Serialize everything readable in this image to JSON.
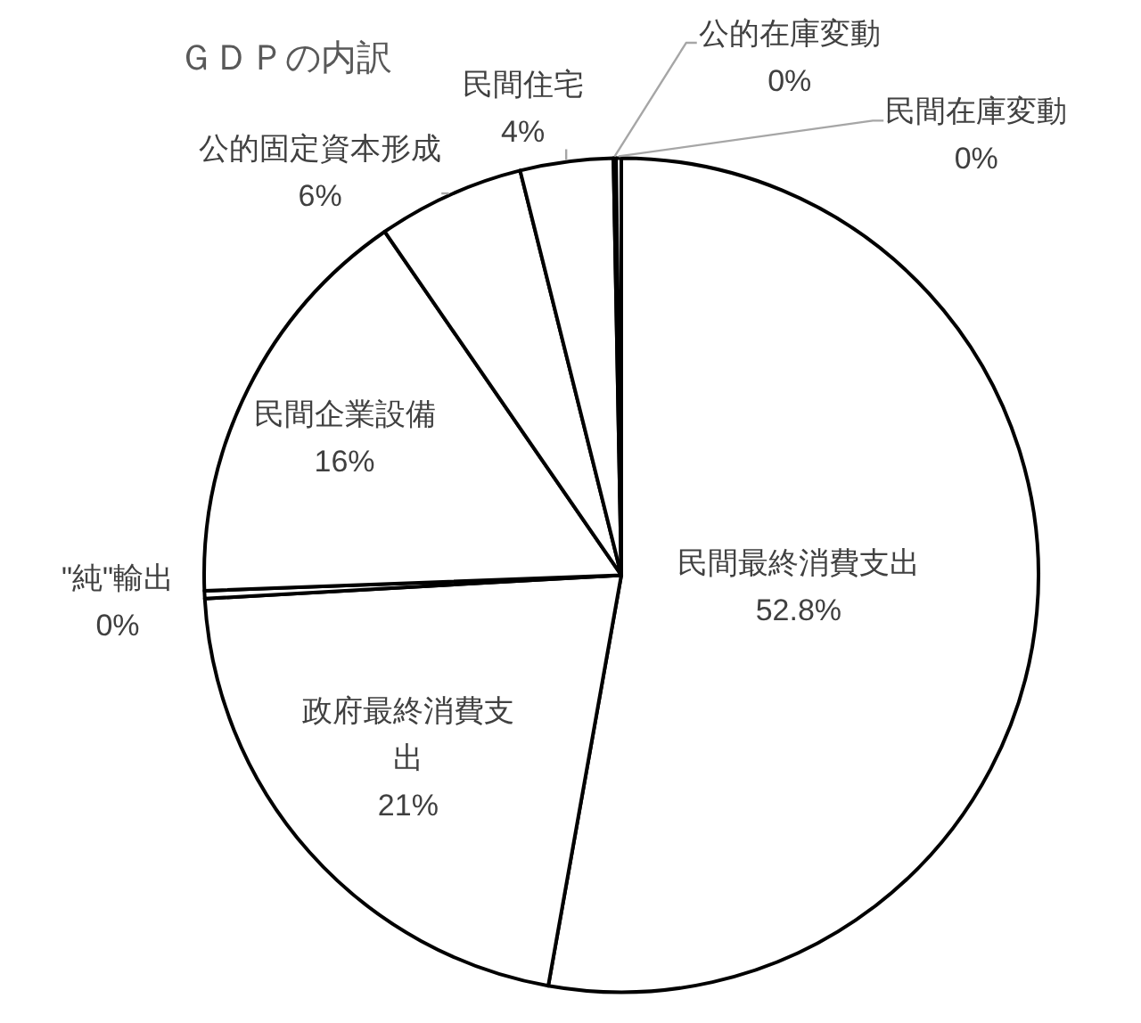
{
  "chart_data": {
    "type": "pie",
    "title": "ＧＤＰの内訳",
    "categories": [
      "民間最終消費支出",
      "政府最終消費支出",
      "\"純\"輸出",
      "民間企業設備",
      "公的固定資本形成",
      "民間住宅",
      "公的在庫変動",
      "民間在庫変動"
    ],
    "values": [
      52.8,
      21.3,
      0.3,
      16.0,
      5.7,
      3.6,
      0.1,
      0.2
    ],
    "colors": [
      "#ffffff",
      "#ffffff",
      "#ffffff",
      "#ffffff",
      "#ffffff",
      "#ffffff",
      "#ffffff",
      "#ffffff"
    ],
    "value_labels": [
      "52.8%",
      "21%",
      "0%",
      "16%",
      "6%",
      "4%",
      "0%",
      "0%"
    ]
  }
}
